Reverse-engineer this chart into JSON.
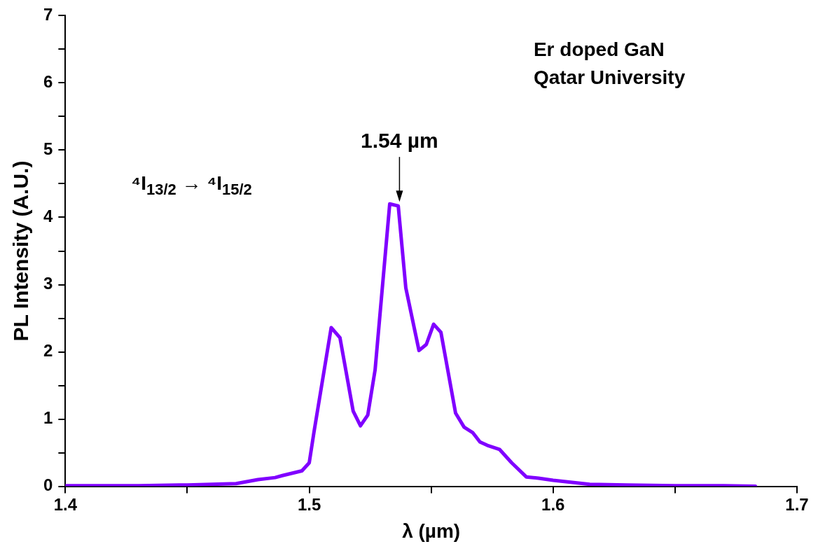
{
  "chart_data": {
    "type": "line",
    "xlabel": "λ (µm)",
    "ylabel": "PL Intensity (A.U.)",
    "xlim": [
      1.4,
      1.7
    ],
    "xticks": [
      1.4,
      {
        "value": 1.45,
        "label": null
      },
      1.5,
      {
        "value": 1.55,
        "label": null
      },
      1.6,
      {
        "value": 1.65,
        "label": null
      },
      1.7
    ],
    "ylim": [
      0,
      7
    ],
    "yticks": [
      0,
      {
        "value": 0.5,
        "label": null
      },
      1,
      {
        "value": 1.5,
        "label": null
      },
      2,
      {
        "value": 2.5,
        "label": null
      },
      3,
      {
        "value": 3.5,
        "label": null
      },
      4,
      {
        "value": 4.5,
        "label": null
      },
      5,
      {
        "value": 5.5,
        "label": null
      },
      6,
      {
        "value": 6.5,
        "label": null
      },
      7
    ],
    "grid": false,
    "legend": false,
    "marker": "none",
    "line_style": "solid",
    "annotations": [
      "Er doped GaN",
      "Qatar University",
      "⁴I$_{13/2}$ → ⁴I$_{15/2}$",
      {
        "text": "1.54 µm",
        "x": 1.537,
        "y": 4.17
      }
    ],
    "series": [
      {
        "color": "#8000ff",
        "x": [
          1.4,
          1.43,
          1.45,
          1.47,
          1.479,
          1.486,
          1.489,
          1.497,
          1.5,
          1.502,
          1.509,
          1.5126,
          1.518,
          1.521,
          1.524,
          1.527,
          1.533,
          1.5365,
          1.5396,
          1.545,
          1.548,
          1.551,
          1.554,
          1.56,
          1.5635,
          1.567,
          1.57,
          1.573,
          1.578,
          1.583,
          1.589,
          1.594,
          1.6,
          1.615,
          1.63,
          1.65,
          1.67,
          1.683
        ],
        "values": [
          0.01,
          0.01,
          0.02,
          0.04,
          0.1,
          0.13,
          0.16,
          0.23,
          0.35,
          0.82,
          2.36,
          2.21,
          1.12,
          0.9,
          1.06,
          1.73,
          4.2,
          4.17,
          2.95,
          2.02,
          2.11,
          2.41,
          2.29,
          1.09,
          0.88,
          0.8,
          0.66,
          0.61,
          0.55,
          0.35,
          0.14,
          0.12,
          0.09,
          0.03,
          0.02,
          0.01,
          0.01,
          0.0
        ]
      }
    ]
  }
}
